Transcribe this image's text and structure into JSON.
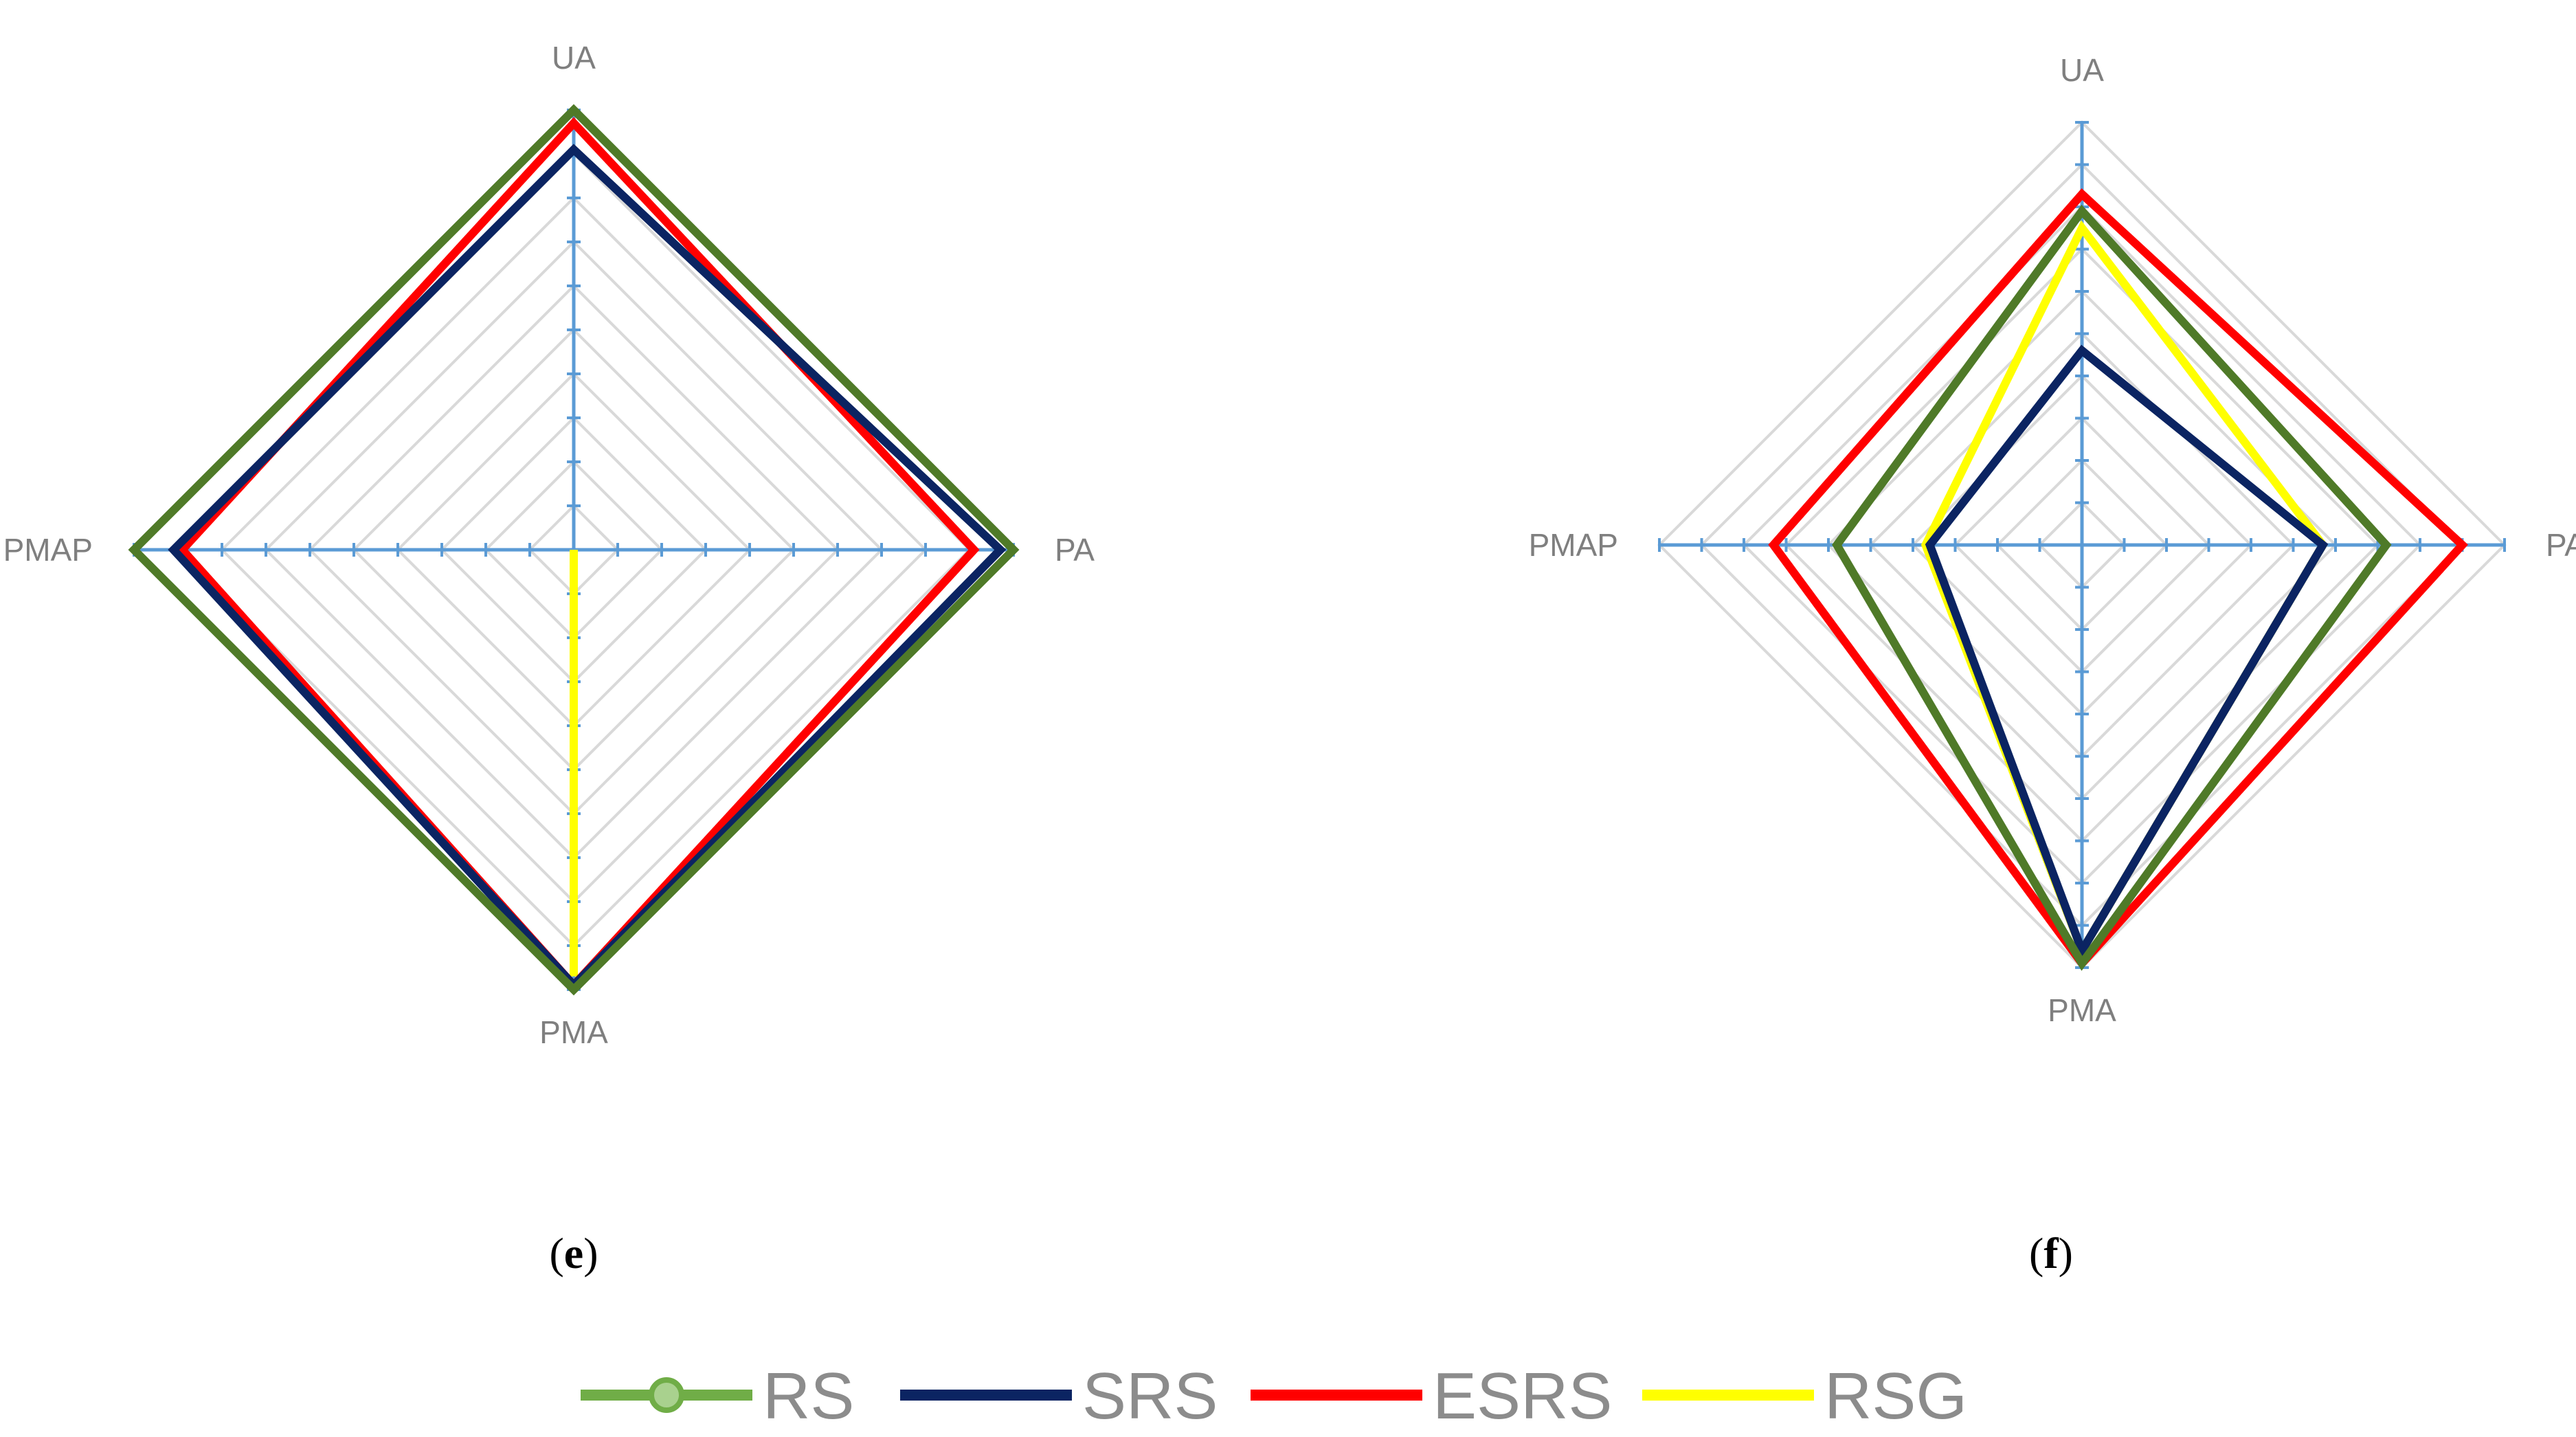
{
  "chart_data": [
    {
      "type": "radar",
      "panel_label": {
        "open": "(",
        "letter": "e",
        "close": ")"
      },
      "axes": [
        "UA",
        "PA",
        "PMA",
        "PMAP"
      ],
      "rmax": 1.0,
      "tick_step": 0.1,
      "grid": true,
      "series": [
        {
          "name": "RS",
          "color": "#4f7a28",
          "values": [
            1.0,
            1.0,
            1.0,
            1.0
          ]
        },
        {
          "name": "SRS",
          "color": "#0b2462",
          "values": [
            0.91,
            0.97,
            0.99,
            0.91
          ]
        },
        {
          "name": "ESRS",
          "color": "#ff0000",
          "values": [
            0.97,
            0.91,
            0.99,
            0.89
          ]
        },
        {
          "name": "RSG",
          "color": "#ffff00",
          "values": [
            0.0,
            0.0,
            0.97,
            0.0
          ]
        }
      ]
    },
    {
      "type": "radar",
      "panel_label": {
        "open": "(",
        "letter": "f",
        "close": ")"
      },
      "axes": [
        "UA",
        "PA",
        "PMA",
        "PMAP"
      ],
      "rmax": 1.0,
      "tick_step": 0.1,
      "grid": true,
      "series": [
        {
          "name": "RS",
          "color": "#4f7a28",
          "values": [
            0.79,
            0.72,
            0.99,
            0.58
          ]
        },
        {
          "name": "SRS",
          "color": "#0b2462",
          "values": [
            0.46,
            0.57,
            0.96,
            0.36
          ]
        },
        {
          "name": "ESRS",
          "color": "#ff0000",
          "values": [
            0.83,
            0.9,
            0.99,
            0.73
          ]
        },
        {
          "name": "RSG",
          "color": "#ffff00",
          "values": [
            0.75,
            0.57,
            0.96,
            0.37
          ]
        }
      ]
    }
  ],
  "legend": {
    "position": "bottom",
    "items": [
      {
        "name": "RS",
        "color": "#70ad47",
        "marker": "circle"
      },
      {
        "name": "SRS",
        "color": "#0b2462",
        "marker": "none"
      },
      {
        "name": "ESRS",
        "color": "#ff0000",
        "marker": "none"
      },
      {
        "name": "RSG",
        "color": "#ffff00",
        "marker": "none"
      }
    ]
  },
  "colors": {
    "axis": "#5b9bd5",
    "grid": "#d9d9d9",
    "axis_label": "#7f7f7f"
  }
}
